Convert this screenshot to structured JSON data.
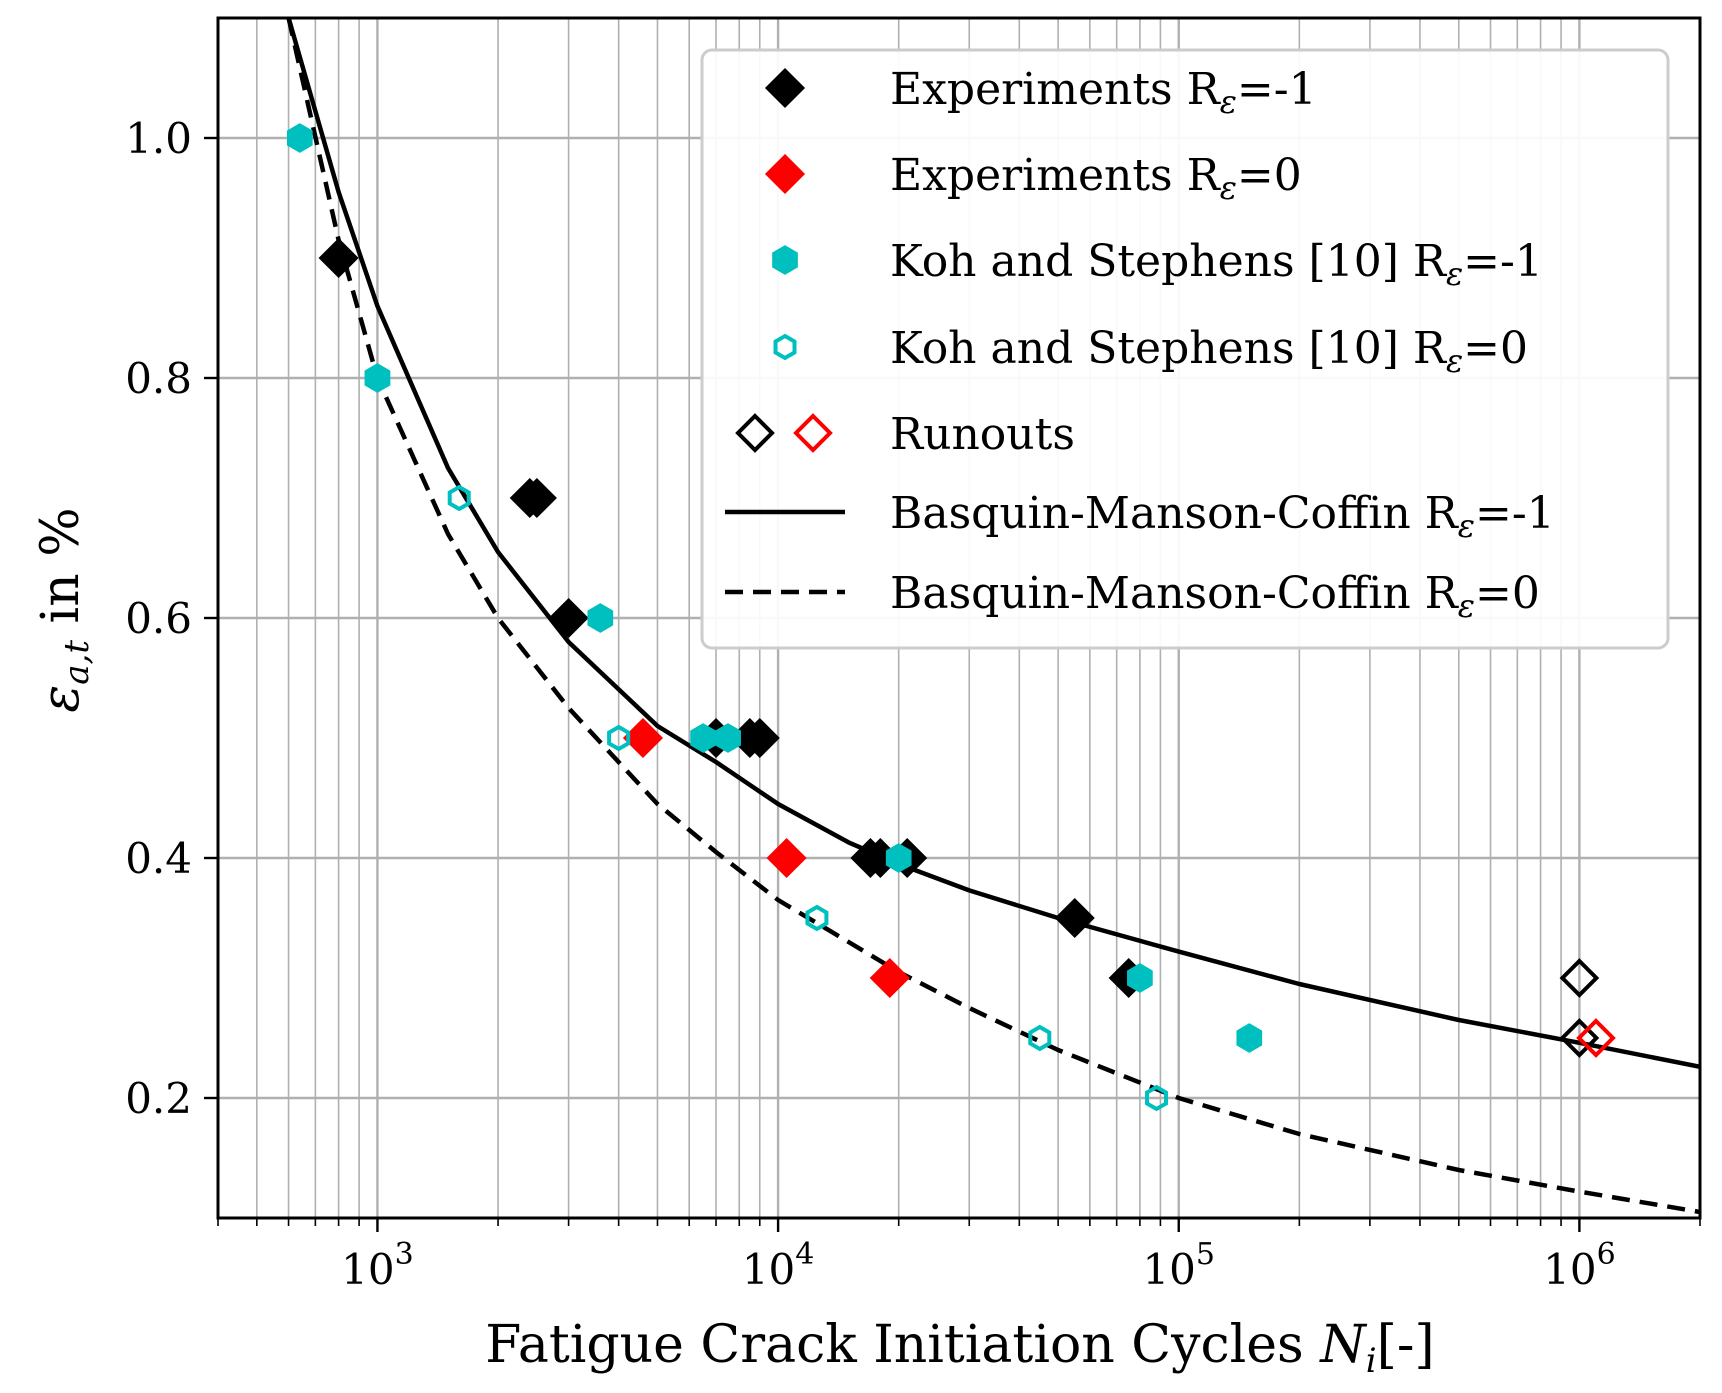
{
  "chart_data": {
    "type": "scatter",
    "title": "",
    "xlabel": "Fatigue Crack Initiation Cycles",
    "xlabel_var": "N",
    "xlabel_sub": "i",
    "xlabel_unit": "[-]",
    "ylabel_var": "ε",
    "ylabel_sub": "a,t",
    "ylabel_unit": "in %",
    "xscale": "log",
    "xlim": [
      400,
      2000000
    ],
    "ylim": [
      0.1,
      1.1
    ],
    "grid": true,
    "legend_position": "upper-right",
    "x_ticks": [
      {
        "base": "10",
        "exp": "3",
        "value": 1000
      },
      {
        "base": "10",
        "exp": "4",
        "value": 10000
      },
      {
        "base": "10",
        "exp": "5",
        "value": 100000
      },
      {
        "base": "10",
        "exp": "6",
        "value": 1000000
      }
    ],
    "y_ticks": [
      {
        "label": "0.2",
        "value": 0.2
      },
      {
        "label": "0.4",
        "value": 0.4
      },
      {
        "label": "0.6",
        "value": 0.6
      },
      {
        "label": "0.8",
        "value": 0.8
      },
      {
        "label": "1.0",
        "value": 1.0
      }
    ],
    "series": [
      {
        "name": "Experiments Rε=-1",
        "legend_main": "Experiments R",
        "legend_sub": "ε",
        "legend_tail": "=-1",
        "marker": "diamond",
        "filled": true,
        "color": "#000000",
        "points": [
          [
            800,
            0.9
          ],
          [
            2400,
            0.7
          ],
          [
            2500,
            0.7
          ],
          [
            3000,
            0.6
          ],
          [
            7000,
            0.5
          ],
          [
            8500,
            0.5
          ],
          [
            9000,
            0.5
          ],
          [
            17000,
            0.4
          ],
          [
            18000,
            0.4
          ],
          [
            21000,
            0.4
          ],
          [
            55000,
            0.35
          ],
          [
            75000,
            0.3
          ]
        ]
      },
      {
        "name": "Experiments Rε=0",
        "legend_main": "Experiments R",
        "legend_sub": "ε",
        "legend_tail": "=0",
        "marker": "diamond",
        "filled": true,
        "color": "#ff0000",
        "points": [
          [
            4600,
            0.5
          ],
          [
            10500,
            0.4
          ],
          [
            19000,
            0.3
          ]
        ]
      },
      {
        "name": "Koh and Stephens [10] Rε=-1",
        "legend_main": "Koh and Stephens [10] R",
        "legend_sub": "ε",
        "legend_tail": "=-1",
        "marker": "hexagon",
        "filled": true,
        "color": "#00bfbf",
        "points": [
          [
            640,
            1.0
          ],
          [
            1000,
            0.8
          ],
          [
            3600,
            0.6
          ],
          [
            6500,
            0.5
          ],
          [
            7500,
            0.5
          ],
          [
            20000,
            0.4
          ],
          [
            80000,
            0.3
          ],
          [
            150000,
            0.25
          ]
        ]
      },
      {
        "name": "Koh and Stephens [10] Rε=0",
        "legend_main": "Koh and Stephens [10] R",
        "legend_sub": "ε",
        "legend_tail": "=0",
        "marker": "hexagon",
        "filled": false,
        "color": "#00bfbf",
        "points": [
          [
            1600,
            0.7
          ],
          [
            4000,
            0.5
          ],
          [
            12500,
            0.35
          ],
          [
            45000,
            0.25
          ],
          [
            88000,
            0.2
          ]
        ]
      },
      {
        "name": "Runouts",
        "legend_main": "Runouts",
        "legend_sub": "",
        "legend_tail": "",
        "marker": "diamond",
        "filled": false,
        "color": "#000000",
        "points_black": [
          [
            1000000,
            0.3
          ],
          [
            1000000,
            0.25
          ]
        ],
        "points_red": [
          [
            1100000,
            0.25
          ]
        ],
        "color_red": "#ff0000"
      }
    ],
    "curves": [
      {
        "name": "Basquin-Manson-Coffin Rε=-1",
        "legend_main": "Basquin-Manson-Coffin R",
        "legend_sub": "ε",
        "legend_tail": "=-1",
        "style": "solid",
        "color": "#000000",
        "x": [
          600,
          800,
          1000,
          1500,
          2000,
          3000,
          5000,
          7000,
          10000,
          15000,
          20000,
          30000,
          50000,
          100000,
          200000,
          500000,
          1000000,
          2000000
        ],
        "y": [
          1.1,
          0.955,
          0.86,
          0.725,
          0.655,
          0.58,
          0.51,
          0.48,
          0.445,
          0.413,
          0.395,
          0.373,
          0.35,
          0.322,
          0.295,
          0.265,
          0.246,
          0.226
        ]
      },
      {
        "name": "Basquin-Manson-Coffin Rε=0",
        "legend_main": "Basquin-Manson-Coffin R",
        "legend_sub": "ε",
        "legend_tail": "=0",
        "style": "dashed",
        "color": "#000000",
        "x": [
          600,
          800,
          1000,
          1500,
          2000,
          3000,
          5000,
          7000,
          10000,
          15000,
          20000,
          30000,
          50000,
          100000,
          200000,
          500000,
          1000000,
          2000000
        ],
        "y": [
          1.1,
          0.915,
          0.8,
          0.67,
          0.6,
          0.525,
          0.445,
          0.405,
          0.365,
          0.33,
          0.305,
          0.275,
          0.24,
          0.2,
          0.17,
          0.14,
          0.122,
          0.105
        ]
      }
    ]
  }
}
